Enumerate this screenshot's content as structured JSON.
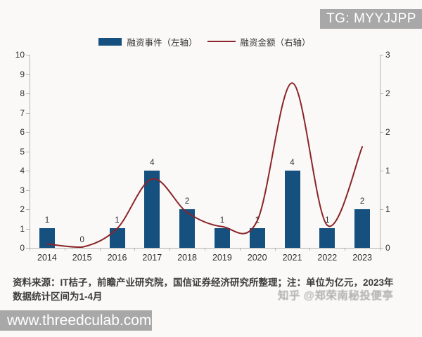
{
  "overlays": {
    "tg_badge": "TG: MYYJJPP",
    "site_badge": "www.threedculab.com",
    "watermark": "知乎 @郑荣南秘投便亭"
  },
  "legend": {
    "items": [
      {
        "label": "融资事件（左轴）",
        "marker": "bar"
      },
      {
        "label": "融资金额（右轴）",
        "marker": "line"
      }
    ]
  },
  "source_note": "资料来源：IT桔子，前瞻产业研究院，国信证券经济研究所整理；注：单位为亿元，2023年数据统计区间为1-4月",
  "colors": {
    "bar": "#15507e",
    "line": "#8a2529",
    "axis": "#b5b3af",
    "badge_bg": "#a8a8a8",
    "text": "#2f2f2f"
  },
  "chart_data": {
    "type": "combo-bar-line",
    "title": "",
    "categories": [
      "2014",
      "2015",
      "2016",
      "2017",
      "2018",
      "2019",
      "2020",
      "2021",
      "2022",
      "2023"
    ],
    "series": [
      {
        "name": "融资事件（左轴）",
        "type": "bar",
        "axis": "left",
        "values": [
          1,
          0,
          1,
          4,
          2,
          1,
          1,
          4,
          1,
          2
        ],
        "data_labels": [
          "1",
          "0",
          "1",
          "4",
          "2",
          "1",
          "1",
          "4",
          "1",
          "2"
        ]
      },
      {
        "name": "融资金额（右轴）",
        "type": "line",
        "axis": "right",
        "values": [
          0.06,
          0.01,
          0.3,
          1.07,
          0.55,
          0.33,
          0.42,
          2.56,
          0.35,
          1.57
        ]
      }
    ],
    "left_axis": {
      "range": [
        0,
        10
      ],
      "ticks": [
        "0",
        "1",
        "2",
        "3",
        "4",
        "5",
        "6",
        "7",
        "8",
        "9",
        "10"
      ]
    },
    "right_axis": {
      "range": [
        0,
        3
      ],
      "tick_values": [
        0,
        0.6,
        1.2,
        1.8,
        2.4,
        3
      ],
      "tick_labels": [
        "0",
        "1",
        "1",
        "2",
        "2",
        "3"
      ]
    },
    "grid": false,
    "legend_position": "top"
  }
}
